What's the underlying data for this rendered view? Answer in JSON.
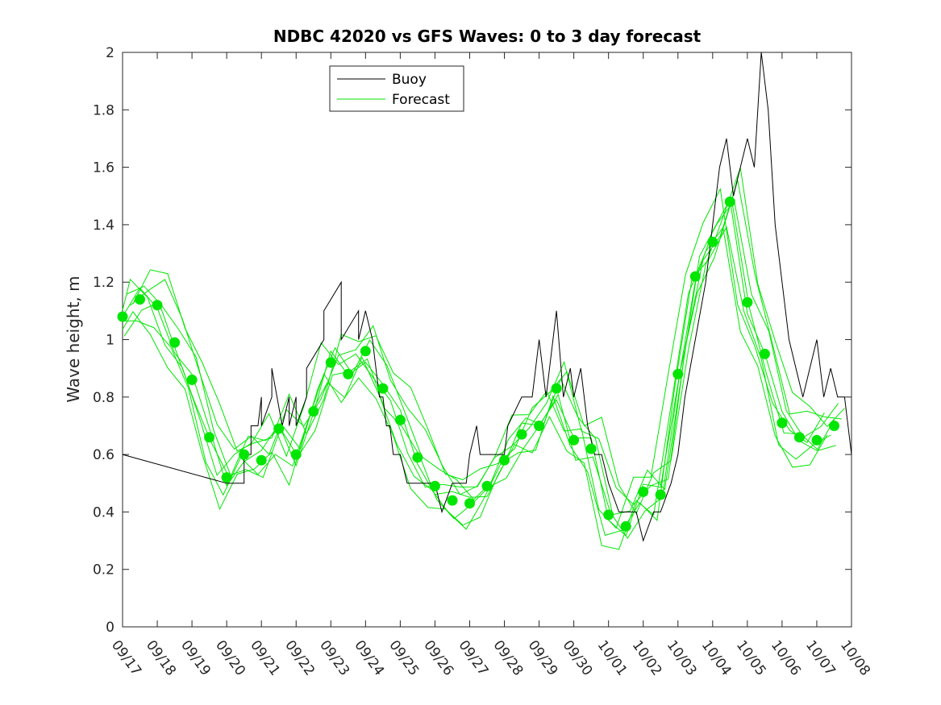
{
  "chart_data": {
    "type": "line",
    "title": "NDBC 42020 vs GFS Waves: 0 to 3 day forecast",
    "xlabel": "",
    "ylabel": "Wave height, m",
    "ylim": [
      0,
      2
    ],
    "yticks": [
      0,
      0.2,
      0.4,
      0.6,
      0.8,
      1,
      1.2,
      1.4,
      1.6,
      1.8,
      2
    ],
    "ytick_labels": [
      "0",
      "0.2",
      "0.4",
      "0.6",
      "0.8",
      "1",
      "1.2",
      "1.4",
      "1.6",
      "1.8",
      "2"
    ],
    "xlim": [
      0,
      21
    ],
    "xtick_labels": [
      "09/17",
      "09/18",
      "09/19",
      "09/20",
      "09/21",
      "09/22",
      "09/23",
      "09/24",
      "09/25",
      "09/26",
      "09/27",
      "09/28",
      "09/29",
      "09/30",
      "10/01",
      "10/02",
      "10/03",
      "10/04",
      "10/05",
      "10/06",
      "10/07",
      "10/08"
    ],
    "legend": {
      "position": "top-left",
      "entries": [
        {
          "name": "Buoy",
          "color": "#000000"
        },
        {
          "name": "Forecast",
          "color": "#00e600"
        }
      ]
    },
    "colors": {
      "buoy": "#000000",
      "forecast": "#00e600",
      "marker": "#00e600"
    },
    "series": [
      {
        "name": "Buoy",
        "x_days": [
          0,
          3.0,
          3.5,
          3.5,
          3.7,
          3.7,
          3.9,
          4.0,
          4.0,
          4.3,
          4.3,
          4.6,
          4.8,
          4.8,
          5.0,
          5.0,
          5.3,
          5.3,
          5.8,
          5.8,
          6.3,
          6.3,
          6.8,
          6.8,
          7.0,
          7.2,
          7.3,
          7.4,
          7.5,
          7.6,
          7.7,
          7.8,
          8.0,
          8.2,
          9.0,
          9.2,
          9.5,
          9.9,
          10.0,
          10.2,
          10.3,
          10.5,
          11.0,
          11.1,
          11.5,
          11.8,
          11.9,
          12.0,
          12.2,
          12.3,
          12.5,
          12.7,
          12.9,
          13.0,
          13.2,
          13.4,
          13.6,
          13.8,
          14.0,
          14.3,
          14.6,
          14.8,
          15.0,
          15.3,
          15.5,
          15.8,
          16.0,
          16.2,
          16.5,
          16.8,
          17.0,
          17.2,
          17.4,
          17.6,
          17.8,
          18.0,
          18.2,
          18.4,
          18.6,
          18.7,
          18.8,
          19.0,
          19.2,
          19.4,
          19.6,
          19.8,
          20.0,
          20.2,
          20.4,
          20.6,
          20.8,
          21.0
        ],
        "values": [
          0.6,
          0.5,
          0.5,
          0.6,
          0.6,
          0.7,
          0.7,
          0.8,
          0.7,
          0.8,
          0.9,
          0.7,
          0.8,
          0.7,
          0.8,
          0.7,
          0.8,
          0.9,
          1.0,
          1.1,
          1.2,
          1.0,
          1.1,
          1.0,
          1.1,
          1.0,
          0.9,
          0.8,
          0.8,
          0.7,
          0.7,
          0.6,
          0.6,
          0.5,
          0.5,
          0.4,
          0.5,
          0.5,
          0.6,
          0.7,
          0.6,
          0.6,
          0.6,
          0.7,
          0.8,
          0.8,
          0.9,
          1.0,
          0.8,
          0.9,
          1.1,
          0.8,
          0.9,
          0.8,
          0.9,
          0.7,
          0.6,
          0.6,
          0.5,
          0.4,
          0.4,
          0.4,
          0.3,
          0.4,
          0.4,
          0.5,
          0.6,
          0.8,
          1.0,
          1.2,
          1.4,
          1.6,
          1.7,
          1.5,
          1.6,
          1.7,
          1.6,
          2.0,
          1.8,
          1.6,
          1.4,
          1.2,
          1.0,
          0.9,
          0.8,
          0.9,
          1.0,
          0.8,
          0.9,
          0.8,
          0.8,
          0.6
        ]
      },
      {
        "name": "Forecast markers",
        "x_days": [
          0,
          0.5,
          1.0,
          1.5,
          2.0,
          2.5,
          3.0,
          3.5,
          4.0,
          4.5,
          5.0,
          5.5,
          6.0,
          6.5,
          7.0,
          7.5,
          8.0,
          8.5,
          9.0,
          9.5,
          10.0,
          10.5,
          11.0,
          11.5,
          12.0,
          12.5,
          13.0,
          13.5,
          14.0,
          14.5,
          15.0,
          15.5,
          16.0,
          16.5,
          17.0,
          17.5,
          18.0,
          18.5,
          19.0,
          19.5,
          20.0,
          20.5
        ],
        "values": [
          1.08,
          1.14,
          1.12,
          0.99,
          0.86,
          0.66,
          0.52,
          0.6,
          0.58,
          0.69,
          0.6,
          0.75,
          0.92,
          0.88,
          0.96,
          0.83,
          0.72,
          0.59,
          0.49,
          0.44,
          0.43,
          0.49,
          0.58,
          0.67,
          0.7,
          0.83,
          0.65,
          0.62,
          0.39,
          0.35,
          0.47,
          0.46,
          0.88,
          1.22,
          1.34,
          1.48,
          1.13,
          0.95,
          0.71,
          0.66,
          0.65,
          0.7
        ]
      }
    ]
  }
}
